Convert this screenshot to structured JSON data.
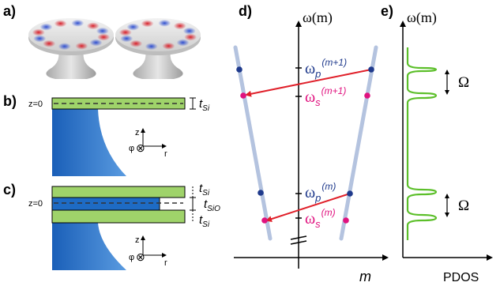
{
  "panels": {
    "a": {
      "label": "a)"
    },
    "b": {
      "label": "b)",
      "z0": "z=0",
      "t_main": "t",
      "t_sub": "Si",
      "axis_z": "z",
      "axis_r": "r",
      "axis_phi": "φ",
      "axis_otimes": "⊗"
    },
    "c": {
      "label": "c)",
      "z0": "z=0",
      "t_main": "t",
      "t_si_sub": "Si",
      "t_sio_sub": "SiO",
      "axis_z": "z",
      "axis_r": "r",
      "axis_phi": "φ",
      "axis_otimes": "⊗"
    },
    "d": {
      "label": "d)",
      "y_axis_label": "ω(m)",
      "x_axis_label": "m",
      "omega": "ω",
      "sub_p": "p",
      "sub_s": "s",
      "sup_m1": "(m+1)",
      "sup_m": "(m)"
    },
    "e": {
      "label": "e)",
      "y_axis_label": "ω(m)",
      "x_axis_label": "PDOS",
      "spacing_upper": "Ω",
      "spacing_lower": "Ω"
    }
  },
  "colors": {
    "dispersion_line": "#b4c3df",
    "pump_dot": "#1f3a8c",
    "signal_dot": "#e0127f",
    "arrow": "#e0202a",
    "pdos_curve": "#5cbf2a",
    "layer_green": "#9fd36a",
    "substrate_blue": "#1e6bc4",
    "label_blue": "#1f3a8c",
    "label_magenta": "#e0127f"
  }
}
